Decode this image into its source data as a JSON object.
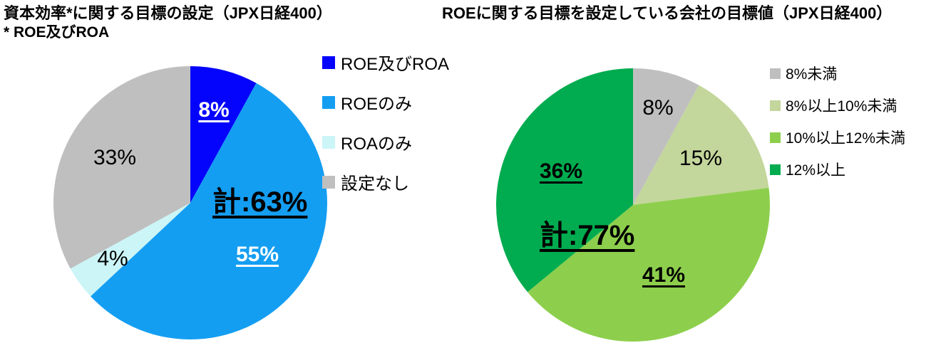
{
  "page": {
    "background": "#FFFFFF",
    "text_color": "#000000"
  },
  "chart_data": [
    {
      "type": "pie",
      "title": "資本効率*に関する目標の設定（JPX日経400）",
      "subtitle": "* ROE及びROA",
      "annotation": "計:63%",
      "start_angle_deg": 0,
      "direction": "clockwise",
      "legend_position": "right",
      "slices": [
        {
          "label": "ROE及びROA",
          "value": 8,
          "pct_label": "8%",
          "color": "#0404FC",
          "label_color": "#FFFFFF",
          "label_bold": true,
          "label_underline": true,
          "label_radius_frac": 0.7
        },
        {
          "label": "ROEのみ",
          "value": 55,
          "pct_label": "55%",
          "color": "#149EF2",
          "label_color": "#FFFFFF",
          "label_bold": true,
          "label_underline": true,
          "label_radius_frac": 0.62
        },
        {
          "label": "ROAのみ",
          "value": 4,
          "pct_label": "4%",
          "color": "#CCF5F7",
          "label_color": "#000000",
          "label_bold": false,
          "label_underline": false,
          "label_radius_frac": 0.7
        },
        {
          "label": "設定なし",
          "value": 33,
          "pct_label": "33%",
          "color": "#BFBFBF",
          "label_color": "#000000",
          "label_bold": false,
          "label_underline": false,
          "label_radius_frac": 0.64
        }
      ]
    },
    {
      "type": "pie",
      "title": "ROEに関する目標を設定している会社の目標値（JPX日経400）",
      "annotation": "計:77%",
      "start_angle_deg": 0,
      "direction": "clockwise",
      "legend_position": "right",
      "slices": [
        {
          "label": "8%未満",
          "value": 8,
          "pct_label": "8%",
          "color": "#BFBFBF",
          "label_color": "#000000",
          "label_bold": false,
          "label_underline": false,
          "label_radius_frac": 0.73
        },
        {
          "label": "8%以上10%未満",
          "value": 15,
          "pct_label": "15%",
          "color": "#C3D69B",
          "label_color": "#000000",
          "label_bold": false,
          "label_underline": false,
          "label_radius_frac": 0.6
        },
        {
          "label": "10%以上12%未満",
          "value": 41,
          "pct_label": "41%",
          "color": "#8DCF4C",
          "label_color": "#000000",
          "label_bold": true,
          "label_underline": true,
          "label_radius_frac": 0.56
        },
        {
          "label": "12%以上",
          "value": 36,
          "pct_label": "36%",
          "color": "#00AC4F",
          "label_color": "#000000",
          "label_bold": true,
          "label_underline": true,
          "label_radius_frac": 0.58
        }
      ]
    }
  ]
}
